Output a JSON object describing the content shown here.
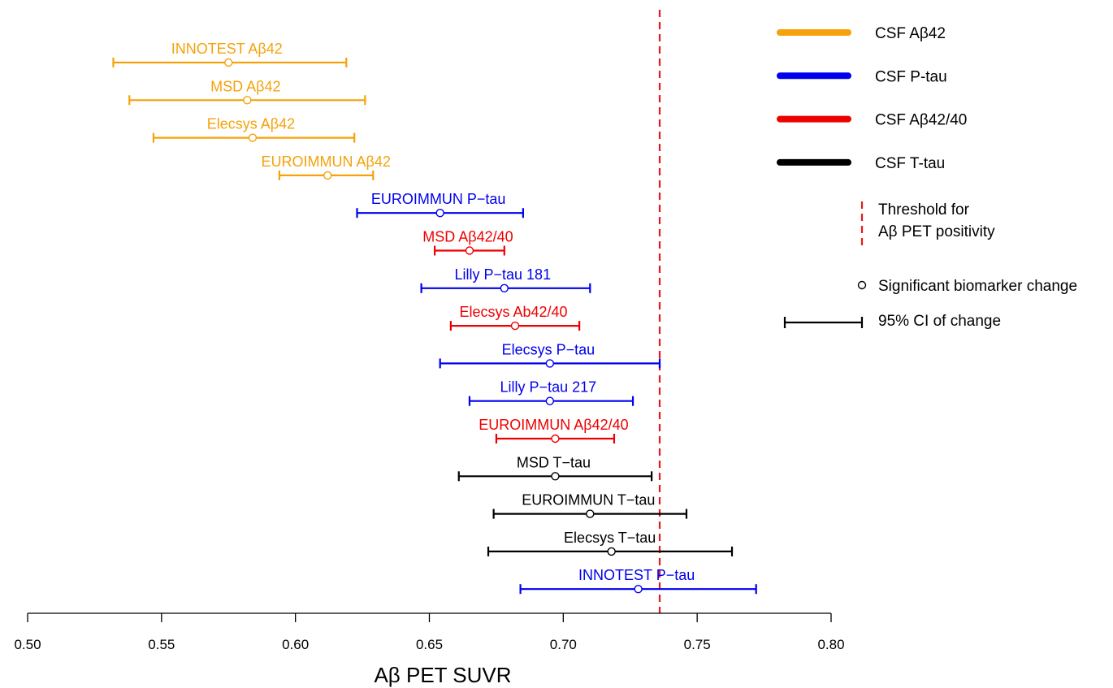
{
  "chart_data": {
    "type": "forest",
    "xlabel": "Aβ PET SUVR",
    "xlim": [
      0.5,
      0.8
    ],
    "xticks": [
      "0.50",
      "0.55",
      "0.60",
      "0.65",
      "0.70",
      "0.75",
      "0.80"
    ],
    "threshold": 0.736,
    "colors": {
      "CSF Aβ42": "#F5A20A",
      "CSF P-tau": "#0000EE",
      "CSF Aβ42/40": "#EE0000",
      "CSF T-tau": "#000000",
      "threshold": "#E41A1C"
    },
    "rows": [
      {
        "label": "INNOTEST Aβ42",
        "group": "CSF Aβ42",
        "point": 0.575,
        "lower": 0.532,
        "upper": 0.619
      },
      {
        "label": "MSD Aβ42",
        "group": "CSF Aβ42",
        "point": 0.582,
        "lower": 0.538,
        "upper": 0.626
      },
      {
        "label": "Elecsys Aβ42",
        "group": "CSF Aβ42",
        "point": 0.584,
        "lower": 0.547,
        "upper": 0.622
      },
      {
        "label": "EUROIMMUN Aβ42",
        "group": "CSF Aβ42",
        "point": 0.612,
        "lower": 0.594,
        "upper": 0.629
      },
      {
        "label": "EUROIMMUN P−tau",
        "group": "CSF P-tau",
        "point": 0.654,
        "lower": 0.623,
        "upper": 0.685
      },
      {
        "label": "MSD Aβ42/40",
        "group": "CSF Aβ42/40",
        "point": 0.665,
        "lower": 0.652,
        "upper": 0.678
      },
      {
        "label": "Lilly P−tau 181",
        "group": "CSF P-tau",
        "point": 0.678,
        "lower": 0.647,
        "upper": 0.71
      },
      {
        "label": "Elecsys Ab42/40",
        "group": "CSF Aβ42/40",
        "point": 0.682,
        "lower": 0.658,
        "upper": 0.706
      },
      {
        "label": "Elecsys P−tau",
        "group": "CSF P-tau",
        "point": 0.695,
        "lower": 0.654,
        "upper": 0.736
      },
      {
        "label": "Lilly P−tau 217",
        "group": "CSF P-tau",
        "point": 0.695,
        "lower": 0.665,
        "upper": 0.726
      },
      {
        "label": "EUROIMMUN Aβ42/40",
        "group": "CSF Aβ42/40",
        "point": 0.697,
        "lower": 0.675,
        "upper": 0.719
      },
      {
        "label": "MSD T−tau",
        "group": "CSF T-tau",
        "point": 0.697,
        "lower": 0.661,
        "upper": 0.733
      },
      {
        "label": "EUROIMMUN T−tau",
        "group": "CSF T-tau",
        "point": 0.71,
        "lower": 0.674,
        "upper": 0.746
      },
      {
        "label": "Elecsys T−tau",
        "group": "CSF T-tau",
        "point": 0.718,
        "lower": 0.672,
        "upper": 0.763
      },
      {
        "label": "INNOTEST P−tau",
        "group": "CSF P-tau",
        "point": 0.728,
        "lower": 0.684,
        "upper": 0.772
      }
    ],
    "legend": {
      "series": [
        "CSF Aβ42",
        "CSF P-tau",
        "CSF Aβ42/40",
        "CSF T-tau"
      ],
      "threshold_lines": [
        "Threshold for",
        "Aβ PET positivity"
      ],
      "point_label": "Significant biomarker change",
      "ci_label": "95% CI of change",
      "placement": "right"
    }
  }
}
